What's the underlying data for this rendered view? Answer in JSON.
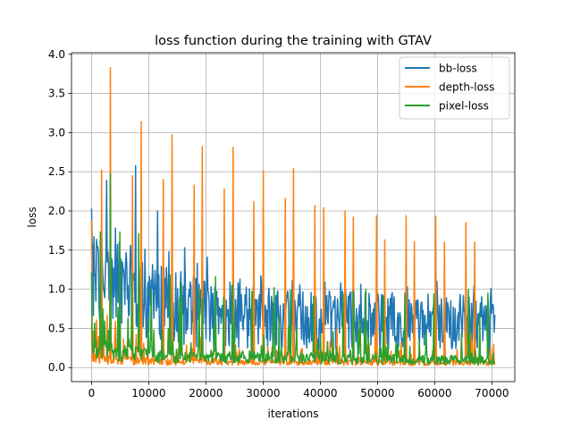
{
  "chart_data": {
    "type": "line",
    "title": "loss function during the training with GTAV",
    "xlabel": "iterations",
    "ylabel": "loss",
    "xlim": [
      -3500,
      74000
    ],
    "ylim": [
      -0.18,
      4.02
    ],
    "xticks": [
      0,
      10000,
      20000,
      30000,
      40000,
      50000,
      60000,
      70000
    ],
    "xtick_labels": [
      "0",
      "10000",
      "20000",
      "30000",
      "40000",
      "50000",
      "60000",
      "70000"
    ],
    "yticks": [
      0.0,
      0.5,
      1.0,
      1.5,
      2.0,
      2.5,
      3.0,
      3.5,
      4.0
    ],
    "ytick_labels": [
      "0.0",
      "0.5",
      "1.0",
      "1.5",
      "2.0",
      "2.5",
      "3.0",
      "3.5",
      "4.0"
    ],
    "grid": true,
    "legend_position": "top-right",
    "x_max": 70600,
    "series": [
      {
        "name": "bb-loss",
        "color": "#1f77b4",
        "peaks": [
          [
            0,
            2.03
          ],
          [
            400,
            1.67
          ],
          [
            1800,
            1.75
          ],
          [
            2600,
            2.39
          ],
          [
            4200,
            1.78
          ],
          [
            6800,
            1.56
          ],
          [
            7700,
            2.58
          ],
          [
            9400,
            1.51
          ],
          [
            11500,
            2.0
          ],
          [
            13500,
            1.48
          ],
          [
            16300,
            1.53
          ],
          [
            18500,
            1.33
          ],
          [
            20200,
            1.41
          ],
          [
            24200,
            1.09
          ],
          [
            29600,
            1.17
          ],
          [
            35100,
            1.11
          ],
          [
            40800,
            1.09
          ],
          [
            45700,
            0.99
          ],
          [
            49800,
            1.0
          ],
          [
            55200,
            1.03
          ],
          [
            60400,
            1.1
          ],
          [
            66900,
            1.05
          ],
          [
            69800,
            1.01
          ]
        ],
        "mean_trend": [
          [
            0,
            1.2
          ],
          [
            5000,
            1.05
          ],
          [
            10000,
            0.85
          ],
          [
            20000,
            0.7
          ],
          [
            35000,
            0.62
          ],
          [
            50000,
            0.6
          ],
          [
            70600,
            0.58
          ]
        ],
        "amplitude_trend": [
          [
            0,
            0.6
          ],
          [
            10000,
            0.5
          ],
          [
            30000,
            0.4
          ],
          [
            70600,
            0.35
          ]
        ]
      },
      {
        "name": "depth-loss",
        "color": "#ff7f0e",
        "peaks": [
          [
            0,
            1.88
          ],
          [
            1800,
            2.52
          ],
          [
            3300,
            3.83
          ],
          [
            7200,
            2.45
          ],
          [
            8700,
            3.14
          ],
          [
            12500,
            2.4
          ],
          [
            14100,
            2.97
          ],
          [
            17900,
            2.33
          ],
          [
            19400,
            2.82
          ],
          [
            23200,
            2.28
          ],
          [
            24800,
            2.81
          ],
          [
            28400,
            2.12
          ],
          [
            30000,
            2.51
          ],
          [
            33900,
            2.16
          ],
          [
            35300,
            2.54
          ],
          [
            39000,
            2.07
          ],
          [
            40600,
            2.04
          ],
          [
            44300,
            2.0
          ],
          [
            45800,
            1.92
          ],
          [
            49800,
            1.94
          ],
          [
            51300,
            1.63
          ],
          [
            55000,
            1.94
          ],
          [
            56400,
            1.61
          ],
          [
            60200,
            1.93
          ],
          [
            61700,
            1.6
          ],
          [
            65500,
            1.85
          ],
          [
            67000,
            1.6
          ]
        ],
        "mean_trend": [
          [
            0,
            0.15
          ],
          [
            10000,
            0.1
          ],
          [
            70600,
            0.08
          ]
        ],
        "amplitude_trend": [
          [
            0,
            0.15
          ],
          [
            70600,
            0.1
          ]
        ]
      },
      {
        "name": "pixel-loss",
        "color": "#2ca02c",
        "peaks": [
          [
            0,
            1.22
          ],
          [
            1500,
            1.73
          ],
          [
            3300,
            2.47
          ],
          [
            5000,
            1.73
          ],
          [
            7000,
            1.2
          ],
          [
            8300,
            1.71
          ],
          [
            10500,
            1.0
          ],
          [
            13700,
            1.18
          ],
          [
            15700,
            1.08
          ],
          [
            18800,
            1.01
          ],
          [
            21700,
            1.16
          ],
          [
            24600,
            1.06
          ],
          [
            28000,
            0.97
          ],
          [
            31900,
            1.02
          ],
          [
            34800,
            0.99
          ],
          [
            38800,
            0.91
          ],
          [
            44000,
            0.94
          ],
          [
            45800,
            0.97
          ],
          [
            48000,
            1.0
          ],
          [
            51000,
            0.91
          ],
          [
            54800,
            0.95
          ],
          [
            59800,
            0.94
          ],
          [
            65900,
            1.0
          ],
          [
            69300,
            0.95
          ]
        ],
        "mean_trend": [
          [
            0,
            0.3
          ],
          [
            10000,
            0.2
          ],
          [
            70600,
            0.12
          ]
        ],
        "amplitude_trend": [
          [
            0,
            0.3
          ],
          [
            10000,
            0.2
          ],
          [
            70600,
            0.15
          ]
        ]
      }
    ]
  }
}
